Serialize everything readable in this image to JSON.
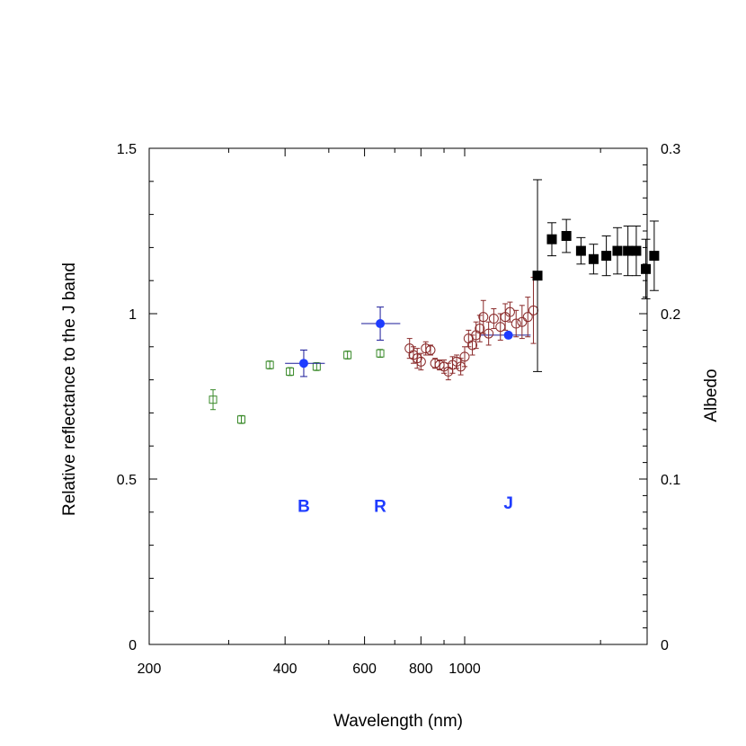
{
  "chart_data": {
    "type": "scatter",
    "title": "",
    "xlabel": "Wavelength (nm)",
    "ylabel": "Relative reflectance to the J band",
    "y2label": "Albedo",
    "xscale": "log",
    "xlim": [
      200,
      2500
    ],
    "ylim": [
      0,
      1.5
    ],
    "y2lim": [
      0,
      0.3
    ],
    "x_ticks": [
      200,
      400,
      600,
      800,
      1000
    ],
    "x_tick_labels": [
      "200",
      "400",
      "600",
      "800",
      "1000"
    ],
    "y_ticks": [
      0,
      0.5,
      1,
      1.5
    ],
    "y_tick_labels": [
      "0",
      "0.5",
      "1",
      "1.5"
    ],
    "y2_ticks": [
      0,
      0.1,
      0.2,
      0.3
    ],
    "y2_tick_labels": [
      "0",
      "0.1",
      "0.2",
      "0.3"
    ],
    "grid": false,
    "legend": "none",
    "colors": {
      "green": "#3a8a2a",
      "blue": "#1f3cff",
      "maroon": "#8a2a2a",
      "black": "#000000"
    },
    "band_labels": [
      {
        "text": "B",
        "x": 440,
        "y": 0.42
      },
      {
        "text": "R",
        "x": 650,
        "y": 0.42
      },
      {
        "text": "J",
        "x": 1250,
        "y": 0.43
      }
    ],
    "series": [
      {
        "marker": "open-square-green",
        "points": [
          {
            "x": 277,
            "y": 0.74,
            "yerr": 0.03
          },
          {
            "x": 320,
            "y": 0.68,
            "yerr": 0.012
          },
          {
            "x": 370,
            "y": 0.845,
            "yerr": 0.012
          },
          {
            "x": 410,
            "y": 0.825,
            "yerr": 0.012
          },
          {
            "x": 470,
            "y": 0.84,
            "yerr": 0.012
          },
          {
            "x": 550,
            "y": 0.875,
            "yerr": 0.012
          },
          {
            "x": 650,
            "y": 0.88,
            "yerr": 0.012
          }
        ]
      },
      {
        "marker": "filled-circle-blue",
        "points": [
          {
            "x": 440,
            "y": 0.85,
            "yerr": 0.04,
            "xlo": 400,
            "xhi": 490
          },
          {
            "x": 650,
            "y": 0.97,
            "yerr": 0.05,
            "xlo": 590,
            "xhi": 720
          },
          {
            "x": 1250,
            "y": 0.935,
            "yerr": 0.0,
            "xlo": 1080,
            "xhi": 1400
          }
        ]
      },
      {
        "marker": "open-circle-maroon",
        "points": [
          {
            "x": 755,
            "y": 0.895,
            "yerr": 0.03
          },
          {
            "x": 770,
            "y": 0.875,
            "yerr": 0.025
          },
          {
            "x": 785,
            "y": 0.865,
            "yerr": 0.03
          },
          {
            "x": 800,
            "y": 0.855,
            "yerr": 0.025
          },
          {
            "x": 820,
            "y": 0.895,
            "yerr": 0.02
          },
          {
            "x": 840,
            "y": 0.89,
            "yerr": 0.015
          },
          {
            "x": 860,
            "y": 0.85,
            "yerr": 0.015
          },
          {
            "x": 880,
            "y": 0.845,
            "yerr": 0.015
          },
          {
            "x": 900,
            "y": 0.84,
            "yerr": 0.02
          },
          {
            "x": 920,
            "y": 0.825,
            "yerr": 0.025
          },
          {
            "x": 940,
            "y": 0.845,
            "yerr": 0.025
          },
          {
            "x": 960,
            "y": 0.855,
            "yerr": 0.02
          },
          {
            "x": 980,
            "y": 0.84,
            "yerr": 0.025
          },
          {
            "x": 1000,
            "y": 0.87,
            "yerr": 0.03
          },
          {
            "x": 1020,
            "y": 0.925,
            "yerr": 0.025
          },
          {
            "x": 1040,
            "y": 0.905,
            "yerr": 0.03
          },
          {
            "x": 1060,
            "y": 0.935,
            "yerr": 0.04
          },
          {
            "x": 1080,
            "y": 0.955,
            "yerr": 0.04
          },
          {
            "x": 1100,
            "y": 0.99,
            "yerr": 0.05
          },
          {
            "x": 1130,
            "y": 0.94,
            "yerr": 0.035
          },
          {
            "x": 1160,
            "y": 0.985,
            "yerr": 0.03
          },
          {
            "x": 1200,
            "y": 0.96,
            "yerr": 0.04
          },
          {
            "x": 1230,
            "y": 0.99,
            "yerr": 0.04
          },
          {
            "x": 1260,
            "y": 1.005,
            "yerr": 0.03
          },
          {
            "x": 1300,
            "y": 0.97,
            "yerr": 0.04
          },
          {
            "x": 1340,
            "y": 0.975,
            "yerr": 0.05
          },
          {
            "x": 1380,
            "y": 0.99,
            "yerr": 0.06
          },
          {
            "x": 1420,
            "y": 1.01,
            "yerr": 0.1
          }
        ]
      },
      {
        "marker": "filled-square-black",
        "points": [
          {
            "x": 1450,
            "y": 1.115,
            "yerr": 0.29
          },
          {
            "x": 1560,
            "y": 1.225,
            "yerr": 0.05
          },
          {
            "x": 1680,
            "y": 1.235,
            "yerr": 0.05
          },
          {
            "x": 1810,
            "y": 1.19,
            "yerr": 0.04
          },
          {
            "x": 1930,
            "y": 1.165,
            "yerr": 0.045
          },
          {
            "x": 2060,
            "y": 1.175,
            "yerr": 0.06
          },
          {
            "x": 2180,
            "y": 1.19,
            "yerr": 0.07
          },
          {
            "x": 2300,
            "y": 1.19,
            "yerr": 0.075
          },
          {
            "x": 2400,
            "y": 1.19,
            "yerr": 0.075
          },
          {
            "x": 2520,
            "y": 1.135,
            "yerr": 0.09
          },
          {
            "x": 2630,
            "y": 1.175,
            "yerr": 0.105
          }
        ]
      }
    ]
  }
}
